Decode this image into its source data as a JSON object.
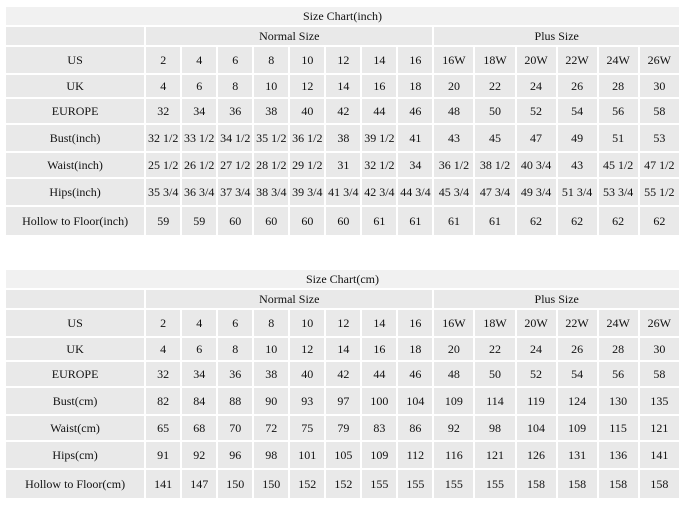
{
  "tables": [
    {
      "title": "Size Chart(inch)",
      "groups": [
        "Normal Size",
        "Plus Size"
      ],
      "rows": [
        {
          "label": "US",
          "normal": [
            2,
            4,
            6,
            8,
            10,
            12,
            14,
            16
          ],
          "plus": [
            "16W",
            "18W",
            "20W",
            "22W",
            "24W",
            "26W"
          ]
        },
        {
          "label": "UK",
          "normal": [
            4,
            6,
            8,
            10,
            12,
            14,
            16,
            18
          ],
          "plus": [
            20,
            22,
            24,
            26,
            28,
            30
          ]
        },
        {
          "label": "EUROPE",
          "normal": [
            32,
            34,
            36,
            38,
            40,
            42,
            44,
            46
          ],
          "plus": [
            48,
            50,
            52,
            54,
            56,
            58
          ]
        },
        {
          "label": "Bust(inch)",
          "normal": [
            "32 1/2",
            "33 1/2",
            "34 1/2",
            "35 1/2",
            "36 1/2",
            38,
            "39 1/2",
            41
          ],
          "plus": [
            43,
            45,
            47,
            49,
            51,
            53
          ]
        },
        {
          "label": "Waist(inch)",
          "normal": [
            "25 1/2",
            "26 1/2",
            "27 1/2",
            "28 1/2",
            "29 1/2",
            31,
            "32 1/2",
            34
          ],
          "plus": [
            "36 1/2",
            "38 1/2",
            "40 3/4",
            43,
            "45 1/2",
            "47 1/2"
          ]
        },
        {
          "label": "Hips(inch)",
          "normal": [
            "35 3/4",
            "36 3/4",
            "37 3/4",
            "38 3/4",
            "39 3/4",
            "41 3/4",
            "42 3/4",
            "44 3/4"
          ],
          "plus": [
            "45 3/4",
            "47 3/4",
            "49 3/4",
            "51 3/4",
            "53 3/4",
            "55 1/2"
          ]
        },
        {
          "label": "Hollow to Floor(inch)",
          "normal": [
            59,
            59,
            60,
            60,
            60,
            60,
            61,
            61
          ],
          "plus": [
            61,
            61,
            62,
            62,
            62,
            62
          ]
        }
      ]
    },
    {
      "title": "Size Chart(cm)",
      "groups": [
        "Normal Size",
        "Plus Size"
      ],
      "rows": [
        {
          "label": "US",
          "normal": [
            2,
            4,
            6,
            8,
            10,
            12,
            14,
            16
          ],
          "plus": [
            "16W",
            "18W",
            "20W",
            "22W",
            "24W",
            "26W"
          ]
        },
        {
          "label": "UK",
          "normal": [
            4,
            6,
            8,
            10,
            12,
            14,
            16,
            18
          ],
          "plus": [
            20,
            22,
            24,
            26,
            28,
            30
          ]
        },
        {
          "label": "EUROPE",
          "normal": [
            32,
            34,
            36,
            38,
            40,
            42,
            44,
            46
          ],
          "plus": [
            48,
            50,
            52,
            54,
            56,
            58
          ]
        },
        {
          "label": "Bust(cm)",
          "normal": [
            82,
            84,
            88,
            90,
            93,
            97,
            100,
            104
          ],
          "plus": [
            109,
            114,
            119,
            124,
            130,
            135
          ]
        },
        {
          "label": "Waist(cm)",
          "normal": [
            65,
            68,
            70,
            72,
            75,
            79,
            83,
            86
          ],
          "plus": [
            92,
            98,
            104,
            109,
            115,
            121
          ]
        },
        {
          "label": "Hips(cm)",
          "normal": [
            91,
            92,
            96,
            98,
            101,
            105,
            109,
            112
          ],
          "plus": [
            116,
            121,
            126,
            131,
            136,
            141
          ]
        },
        {
          "label": "Hollow to Floor(cm)",
          "normal": [
            141,
            147,
            150,
            150,
            152,
            152,
            155,
            155
          ],
          "plus": [
            155,
            155,
            158,
            158,
            158,
            158
          ]
        }
      ]
    }
  ]
}
